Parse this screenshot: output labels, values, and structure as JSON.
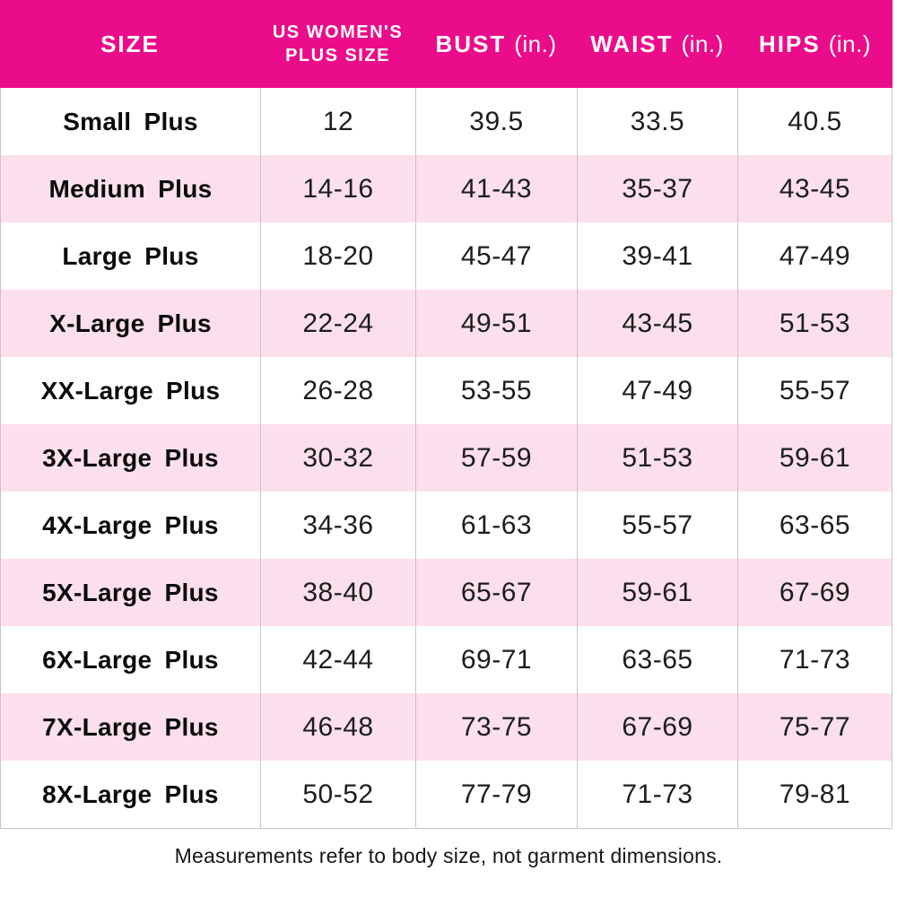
{
  "header": {
    "col1": "SIZE",
    "col2_line1": "US WOMEN'S",
    "col2_line2": "PLUS SIZE",
    "col3_main": "BUST",
    "col3_unit": "(in.)",
    "col4_main": "WAIST",
    "col4_unit": "(in.)",
    "col5_main": "HIPS",
    "col5_unit": "(in.)"
  },
  "footer": {
    "note": "Measurements refer to body size, not garment dimensions."
  },
  "colors": {
    "header_bg": "#EA0C8B",
    "header_text": "#FFFFFF",
    "row_alt_bg": "#FBDFEC",
    "row_bg": "#FFFFFF",
    "grid_line": "#C6C6C6",
    "body_text": "#1D1D1D"
  },
  "chart_data": {
    "type": "table",
    "title": "Plus size chart",
    "columns": [
      "SIZE",
      "US WOMEN'S PLUS SIZE",
      "BUST (in.)",
      "WAIST (in.)",
      "HIPS (in.)"
    ],
    "rows": [
      [
        "Small Plus",
        "12",
        "39.5",
        "33.5",
        "40.5"
      ],
      [
        "Medium Plus",
        "14-16",
        "41-43",
        "35-37",
        "43-45"
      ],
      [
        "Large Plus",
        "18-20",
        "45-47",
        "39-41",
        "47-49"
      ],
      [
        "X-Large Plus",
        "22-24",
        "49-51",
        "43-45",
        "51-53"
      ],
      [
        "XX-Large Plus",
        "26-28",
        "53-55",
        "47-49",
        "55-57"
      ],
      [
        "3X-Large Plus",
        "30-32",
        "57-59",
        "51-53",
        "59-61"
      ],
      [
        "4X-Large Plus",
        "34-36",
        "61-63",
        "55-57",
        "63-65"
      ],
      [
        "5X-Large Plus",
        "38-40",
        "65-67",
        "59-61",
        "67-69"
      ],
      [
        "6X-Large Plus",
        "42-44",
        "69-71",
        "63-65",
        "71-73"
      ],
      [
        "7X-Large Plus",
        "46-48",
        "73-75",
        "67-69",
        "75-77"
      ],
      [
        "8X-Large Plus",
        "50-52",
        "77-79",
        "71-73",
        "79-81"
      ]
    ],
    "note": "Measurements refer to body size, not garment dimensions.",
    "layout": {
      "alternating_row_shading": true,
      "shaded_rows": "even (Medium Plus, X-Large Plus, 3X-Large Plus, 5X-Large Plus, 7X-Large Plus)"
    }
  }
}
